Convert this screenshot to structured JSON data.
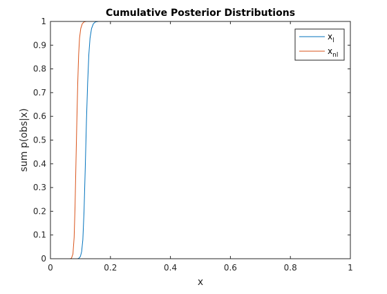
{
  "chart_data": {
    "type": "line",
    "title": "Cumulative Posterior Distributions",
    "xlabel": "x",
    "ylabel": "sum p(obs|x)",
    "xlim": [
      0,
      1
    ],
    "ylim": [
      0,
      1
    ],
    "xticks": [
      0,
      0.2,
      0.4,
      0.6,
      0.8,
      1
    ],
    "xtick_labels": [
      "0",
      "0.2",
      "0.4",
      "0.6",
      "0.8",
      "1"
    ],
    "yticks": [
      0,
      0.1,
      0.2,
      0.3,
      0.4,
      0.5,
      0.6,
      0.7,
      0.8,
      0.9,
      1
    ],
    "ytick_labels": [
      "0",
      "0.1",
      "0.2",
      "0.3",
      "0.4",
      "0.5",
      "0.6",
      "0.7",
      "0.8",
      "0.9",
      "1"
    ],
    "grid": false,
    "legend_position": "top-right",
    "series": [
      {
        "legend_base": "x",
        "legend_sub": "l",
        "color": "#0072BD",
        "points": [
          [
            0,
            0
          ],
          [
            0.09,
            0
          ],
          [
            0.095,
            0.002
          ],
          [
            0.1,
            0.01
          ],
          [
            0.104,
            0.03
          ],
          [
            0.108,
            0.08
          ],
          [
            0.112,
            0.2
          ],
          [
            0.116,
            0.38
          ],
          [
            0.12,
            0.58
          ],
          [
            0.124,
            0.74
          ],
          [
            0.128,
            0.86
          ],
          [
            0.132,
            0.93
          ],
          [
            0.137,
            0.97
          ],
          [
            0.143,
            0.99
          ],
          [
            0.15,
            0.998
          ],
          [
            0.16,
            1
          ],
          [
            1,
            1
          ]
        ]
      },
      {
        "legend_base": "x",
        "legend_sub": "nl",
        "color": "#D95319",
        "points": [
          [
            0,
            0
          ],
          [
            0.065,
            0
          ],
          [
            0.07,
            0.002
          ],
          [
            0.075,
            0.02
          ],
          [
            0.079,
            0.09
          ],
          [
            0.082,
            0.22
          ],
          [
            0.085,
            0.4
          ],
          [
            0.088,
            0.58
          ],
          [
            0.091,
            0.74
          ],
          [
            0.094,
            0.86
          ],
          [
            0.097,
            0.93
          ],
          [
            0.101,
            0.97
          ],
          [
            0.106,
            0.99
          ],
          [
            0.112,
            0.998
          ],
          [
            0.12,
            1
          ],
          [
            1,
            1
          ]
        ]
      }
    ]
  }
}
